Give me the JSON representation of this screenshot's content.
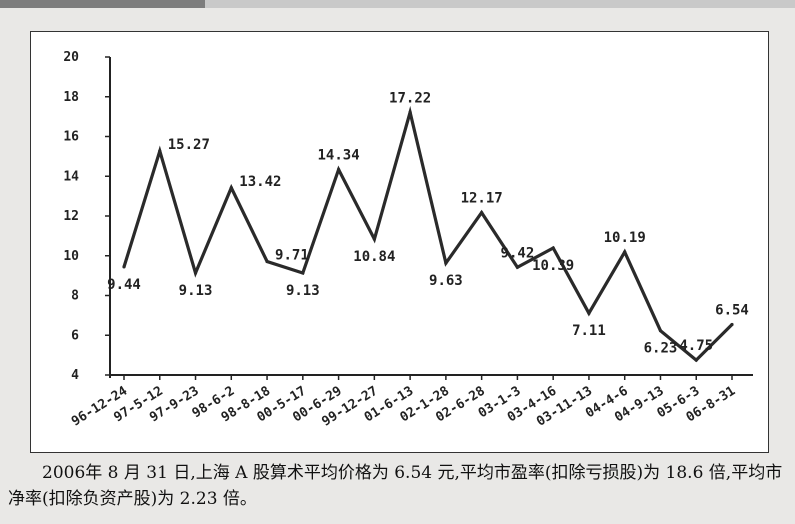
{
  "chart_data": {
    "type": "line",
    "title": "",
    "xlabel": "",
    "ylabel": "",
    "ylim": [
      4,
      20
    ],
    "yticks": [
      "20",
      "18",
      "16",
      "14",
      "12",
      "10",
      "8",
      "6",
      "4"
    ],
    "categories": [
      "96-12-24",
      "97-5-12",
      "97-9-23",
      "98-6-2",
      "98-8-18",
      "00-5-17",
      "00-6-29",
      "99-12-27",
      "01-6-13",
      "02-1-28",
      "02-6-28",
      "03-1-3",
      "03-4-16",
      "03-11-13",
      "04-4-6",
      "04-9-13",
      "05-6-3",
      "06-8-31"
    ],
    "values": [
      9.44,
      15.27,
      9.13,
      13.42,
      9.71,
      9.13,
      14.34,
      10.84,
      17.22,
      9.63,
      12.17,
      9.42,
      10.39,
      7.11,
      10.19,
      6.23,
      4.75,
      6.54
    ],
    "data_labels": [
      "9.44",
      "15.27",
      "9.13",
      "13.42",
      "9.71",
      "9.13",
      "14.34",
      "10.84",
      "17.22",
      "9.63",
      "12.17",
      "9.42",
      "10.39",
      "7.11",
      "10.19",
      "6.23",
      "4.75",
      "6.54"
    ],
    "label_position": [
      "below",
      "right",
      "below",
      "right",
      "right",
      "below",
      "above",
      "below",
      "above",
      "below",
      "above",
      "above",
      "below",
      "below",
      "above",
      "below",
      "above",
      "above"
    ],
    "grid": false,
    "legend": "none",
    "line_color": "#2a2a2a"
  },
  "caption": "2006年 8 月 31 日,上海 A 股算术平均价格为 6.54 元,平均市盈率(扣除亏损股)为 18.6 倍,平均市净率(扣除负资产股)为 2.23 倍。"
}
